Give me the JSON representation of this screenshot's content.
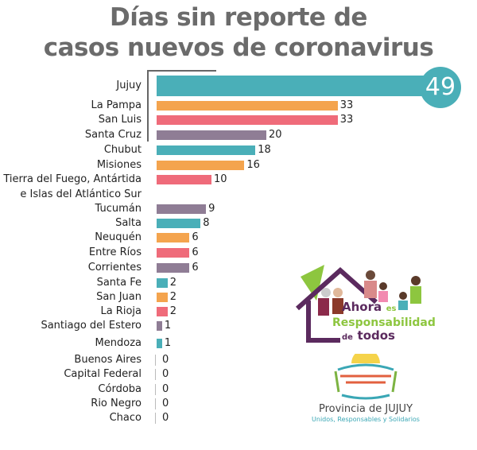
{
  "chart_data": {
    "type": "bar",
    "orientation": "horizontal",
    "title": "Días sin reporte de casos nuevos de coronavirus",
    "title_lines": [
      "Días sin reporte de",
      "casos nuevos de coronavirus"
    ],
    "categories": [
      "Jujuy",
      "La Pampa",
      "San Luis",
      "Santa Cruz",
      "Chubut",
      "Misiones",
      "Tierra del Fuego, Antártida e Islas del Atlántico Sur",
      "Tucumán",
      "Salta",
      "Neuquén",
      "Entre Ríos",
      "Corrientes",
      "Santa Fe",
      "San Juan",
      "La Rioja",
      "Santiago del Estero",
      "Mendoza",
      "Buenos Aires",
      "Capital Federal",
      "Córdoba",
      "Rio Negro",
      "Chaco"
    ],
    "values": [
      49,
      33,
      33,
      20,
      18,
      16,
      10,
      9,
      8,
      6,
      6,
      6,
      2,
      2,
      2,
      1,
      1,
      0,
      0,
      0,
      0,
      0
    ],
    "colors": [
      "#4aafb8",
      "#f4a44e",
      "#ef6b7a",
      "#8f7d95"
    ],
    "grid": false,
    "xlabel": "",
    "ylabel": ""
  },
  "logos": {
    "campaign": {
      "line1a": "Ahora",
      "line1b": "es",
      "line2": "Responsabilidad",
      "line3a": "de",
      "line3b": "todos"
    },
    "province": {
      "name": "Provincia de JUJUY",
      "slogan": "Unidos, Responsables y Solidarios"
    }
  }
}
